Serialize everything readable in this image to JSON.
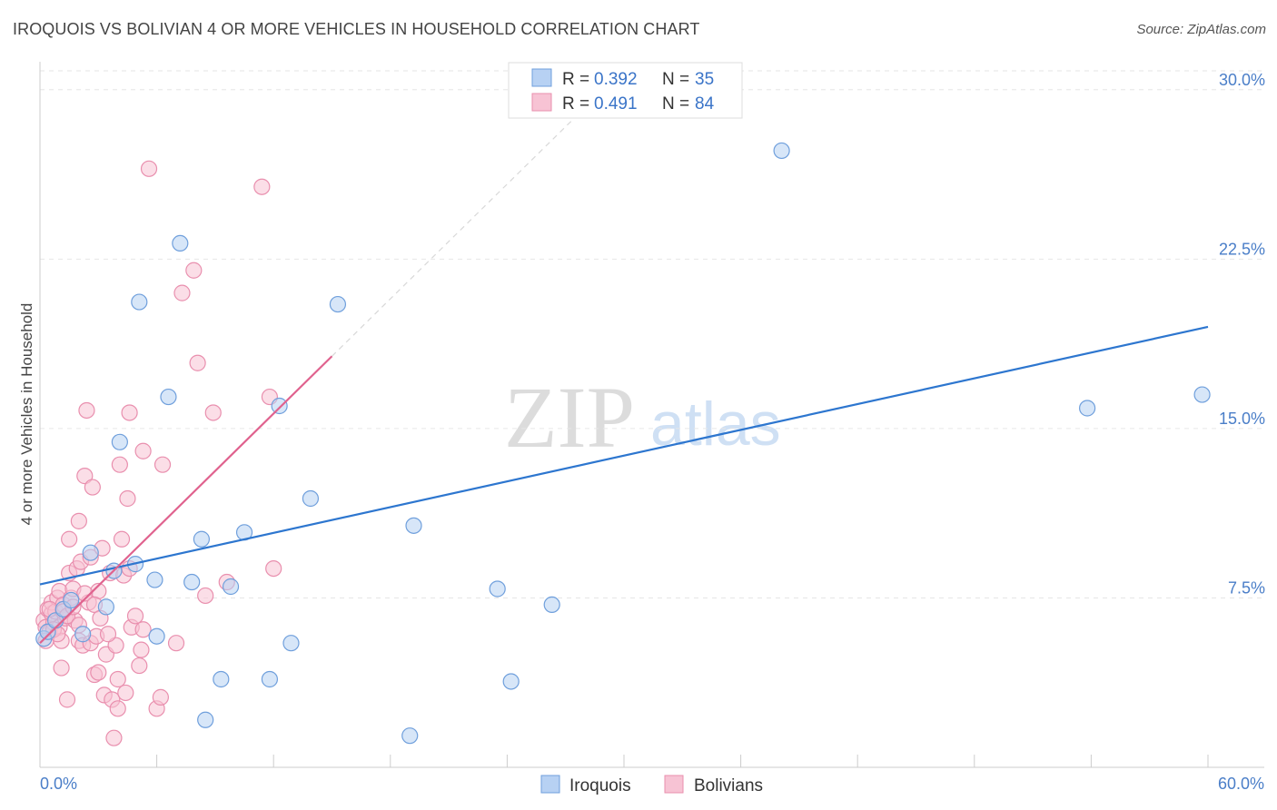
{
  "header": {
    "title": "IROQUOIS VS BOLIVIAN 4 OR MORE VEHICLES IN HOUSEHOLD CORRELATION CHART",
    "source": "Source: ZipAtlas.com"
  },
  "watermark": {
    "zip": "ZIP",
    "atlas": "atlas"
  },
  "legend": {
    "rows": [
      {
        "r_label": "R =",
        "r_value": "0.392",
        "n_label": "N =",
        "n_value": "35"
      },
      {
        "r_label": "R =",
        "r_value": "0.491",
        "n_label": "N =",
        "n_value": "84"
      }
    ]
  },
  "bottom_legend": {
    "items": [
      "Iroquois",
      "Bolivians"
    ]
  },
  "colors": {
    "iroquois_fill": "#b7d1f3",
    "iroquois_stroke": "#6f9fdc",
    "iroquois_line": "#2d76cf",
    "bolivian_fill": "#f7c3d4",
    "bolivian_stroke": "#e98fae",
    "bolivian_line": "#e0628e",
    "axis_label": "#4a7ec8"
  },
  "chart_data": {
    "type": "scatter",
    "title": "IROQUOIS VS BOLIVIAN 4 OR MORE VEHICLES IN HOUSEHOLD CORRELATION CHART",
    "xlabel": "",
    "ylabel": "4 or more Vehicles in Household",
    "xlim": [
      0,
      60
    ],
    "ylim": [
      0,
      32
    ],
    "x_tick_labels": [
      "0.0%",
      "60.0%"
    ],
    "y_ticks": [
      7.5,
      15.0,
      22.5,
      30.0
    ],
    "y_tick_labels": [
      "7.5%",
      "15.0%",
      "22.5%",
      "30.0%"
    ],
    "grid": true,
    "series": [
      {
        "name": "Iroquois",
        "R": 0.392,
        "N": 35,
        "trend": {
          "x": [
            0,
            60
          ],
          "y": [
            8.1,
            19.5
          ]
        },
        "points": [
          [
            0.2,
            5.7
          ],
          [
            0.4,
            6.0
          ],
          [
            0.8,
            6.5
          ],
          [
            1.2,
            7.0
          ],
          [
            1.6,
            7.4
          ],
          [
            2.2,
            5.9
          ],
          [
            2.6,
            9.5
          ],
          [
            3.4,
            7.1
          ],
          [
            3.8,
            8.7
          ],
          [
            4.1,
            14.4
          ],
          [
            4.9,
            9.0
          ],
          [
            5.1,
            20.6
          ],
          [
            5.9,
            8.3
          ],
          [
            6.0,
            5.8
          ],
          [
            6.6,
            16.4
          ],
          [
            7.2,
            23.2
          ],
          [
            7.8,
            8.2
          ],
          [
            8.3,
            10.1
          ],
          [
            8.5,
            2.1
          ],
          [
            9.3,
            3.9
          ],
          [
            9.8,
            8.0
          ],
          [
            10.5,
            10.4
          ],
          [
            11.8,
            3.9
          ],
          [
            12.3,
            16.0
          ],
          [
            12.9,
            5.5
          ],
          [
            13.9,
            11.9
          ],
          [
            15.3,
            20.5
          ],
          [
            19.0,
            1.4
          ],
          [
            19.2,
            10.7
          ],
          [
            23.5,
            7.9
          ],
          [
            24.2,
            3.8
          ],
          [
            26.3,
            7.2
          ],
          [
            38.1,
            27.3
          ],
          [
            53.8,
            15.9
          ],
          [
            59.7,
            16.5
          ]
        ]
      },
      {
        "name": "Bolivians",
        "R": 0.491,
        "N": 84,
        "trend": {
          "x": [
            0,
            15.0
          ],
          "y": [
            5.5,
            18.2
          ]
        },
        "trend_extension": {
          "x": [
            15.0,
            30.0
          ],
          "y": [
            18.2,
            30.9
          ]
        },
        "points": [
          [
            0.2,
            6.5
          ],
          [
            0.3,
            6.2
          ],
          [
            0.4,
            7.0
          ],
          [
            0.5,
            6.0
          ],
          [
            0.6,
            6.8
          ],
          [
            0.6,
            7.3
          ],
          [
            0.7,
            6.4
          ],
          [
            0.8,
            6.9
          ],
          [
            0.9,
            7.5
          ],
          [
            1.0,
            6.2
          ],
          [
            1.0,
            7.8
          ],
          [
            1.1,
            5.6
          ],
          [
            1.1,
            4.4
          ],
          [
            1.2,
            7.2
          ],
          [
            1.3,
            6.6
          ],
          [
            1.4,
            3.0
          ],
          [
            1.5,
            8.6
          ],
          [
            1.5,
            10.1
          ],
          [
            1.6,
            7.5
          ],
          [
            1.7,
            7.9
          ],
          [
            1.8,
            6.5
          ],
          [
            1.9,
            8.8
          ],
          [
            2.0,
            10.9
          ],
          [
            2.0,
            5.6
          ],
          [
            2.1,
            9.1
          ],
          [
            2.2,
            5.4
          ],
          [
            2.3,
            12.9
          ],
          [
            2.4,
            15.8
          ],
          [
            2.5,
            7.3
          ],
          [
            2.6,
            5.5
          ],
          [
            2.6,
            9.3
          ],
          [
            2.7,
            12.4
          ],
          [
            2.8,
            4.1
          ],
          [
            2.9,
            5.8
          ],
          [
            3.0,
            7.8
          ],
          [
            3.0,
            4.2
          ],
          [
            3.2,
            9.7
          ],
          [
            3.3,
            3.2
          ],
          [
            3.4,
            5.0
          ],
          [
            3.6,
            8.6
          ],
          [
            3.7,
            3.0
          ],
          [
            3.8,
            1.3
          ],
          [
            3.9,
            5.4
          ],
          [
            4.0,
            3.9
          ],
          [
            4.0,
            2.6
          ],
          [
            4.1,
            13.4
          ],
          [
            4.2,
            10.1
          ],
          [
            4.3,
            8.5
          ],
          [
            4.4,
            3.3
          ],
          [
            4.5,
            11.9
          ],
          [
            4.6,
            8.8
          ],
          [
            4.6,
            15.7
          ],
          [
            4.7,
            6.2
          ],
          [
            4.9,
            6.7
          ],
          [
            5.1,
            4.5
          ],
          [
            5.2,
            5.2
          ],
          [
            5.3,
            6.1
          ],
          [
            5.3,
            14.0
          ],
          [
            5.6,
            26.5
          ],
          [
            6.0,
            2.6
          ],
          [
            6.2,
            3.1
          ],
          [
            6.3,
            13.4
          ],
          [
            7.0,
            5.5
          ],
          [
            7.3,
            21.0
          ],
          [
            7.9,
            22.0
          ],
          [
            8.1,
            17.9
          ],
          [
            8.5,
            7.6
          ],
          [
            8.9,
            15.7
          ],
          [
            9.6,
            8.2
          ],
          [
            11.4,
            25.7
          ],
          [
            11.8,
            16.4
          ],
          [
            12.0,
            8.8
          ],
          [
            0.3,
            5.6
          ],
          [
            0.5,
            7.0
          ],
          [
            0.7,
            6.1
          ],
          [
            0.9,
            5.9
          ],
          [
            1.2,
            6.9
          ],
          [
            1.4,
            6.7
          ],
          [
            1.7,
            7.1
          ],
          [
            2.0,
            6.3
          ],
          [
            2.3,
            7.7
          ],
          [
            2.8,
            7.2
          ],
          [
            3.1,
            6.6
          ],
          [
            3.5,
            5.9
          ]
        ]
      }
    ]
  }
}
